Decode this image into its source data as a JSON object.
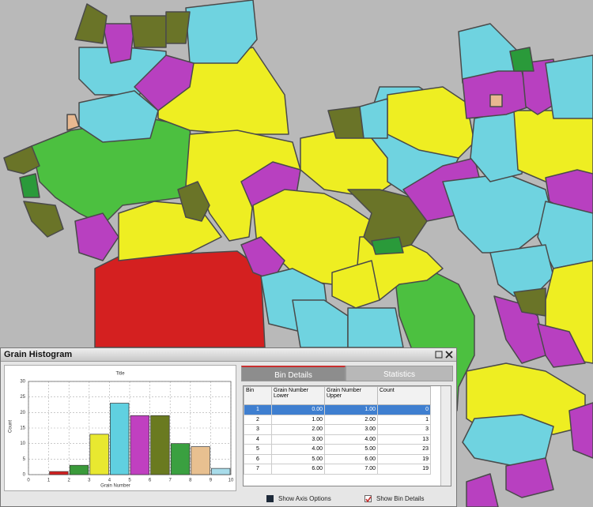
{
  "window": {
    "title": "Grain Histogram"
  },
  "chart_data": {
    "type": "histogram",
    "title": "Title",
    "x_label": "Grain Number",
    "y_label": "Count",
    "bins": [
      0,
      1,
      2,
      3,
      4,
      5,
      6,
      7,
      8,
      9,
      10
    ],
    "counts": [
      0,
      1,
      3,
      13,
      23,
      19,
      19,
      10,
      9,
      2
    ],
    "colors": [
      "#999999",
      "#d42020",
      "#3a9a3a",
      "#e8e830",
      "#60d0e0",
      "#c040c0",
      "#6a7a20",
      "#3aa040",
      "#e8c090",
      "#a8dcea"
    ],
    "xlim": [
      0,
      10
    ],
    "xticks": [
      0,
      1,
      2,
      3,
      4,
      5,
      6,
      7,
      8,
      9,
      10
    ],
    "ylim": [
      0,
      30
    ],
    "yticks": [
      0,
      5,
      10,
      15,
      20,
      25,
      30
    ],
    "grid": true
  },
  "tabs": [
    "Bin Details",
    "Statistics"
  ],
  "table": {
    "columns": [
      "Bin",
      "Grain Number Lower",
      "Grain Number Upper",
      "Count"
    ],
    "rows": [
      [
        "1",
        "0.00",
        "1.00",
        "0"
      ],
      [
        "2",
        "1.00",
        "2.00",
        "1"
      ],
      [
        "3",
        "2.00",
        "3.00",
        "3"
      ],
      [
        "4",
        "3.00",
        "4.00",
        "13"
      ],
      [
        "5",
        "4.00",
        "5.00",
        "23"
      ],
      [
        "6",
        "5.00",
        "6.00",
        "19"
      ],
      [
        "7",
        "6.00",
        "7.00",
        "19"
      ]
    ]
  },
  "options": [
    {
      "label": "Show Axis Options",
      "checked": false
    },
    {
      "label": "Show Bin Details",
      "checked": true
    }
  ]
}
